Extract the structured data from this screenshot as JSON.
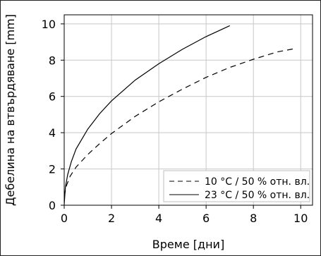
{
  "chart_data": {
    "type": "line",
    "xlabel": "Време [дни]",
    "ylabel": "Дебелина на втвърдяване [mm]",
    "xlim": [
      0,
      10.5
    ],
    "ylim": [
      0,
      10.5
    ],
    "xticks": [
      0,
      2,
      4,
      6,
      8,
      10
    ],
    "yticks": [
      0,
      2,
      4,
      6,
      8,
      10
    ],
    "grid": true,
    "legend_position": "bottom-right",
    "series": [
      {
        "name": "10 °C / 50 % отн. вл.",
        "style": "dashed",
        "color": "#000000",
        "x": [
          0,
          0.1,
          0.25,
          0.5,
          1,
          1.5,
          2,
          3,
          4,
          5,
          6,
          7,
          8,
          9,
          9.8
        ],
        "y": [
          0.5,
          1.1,
          1.6,
          2.1,
          2.8,
          3.4,
          3.95,
          4.9,
          5.7,
          6.4,
          7.05,
          7.6,
          8.05,
          8.45,
          8.65
        ]
      },
      {
        "name": "23 °C / 50 % отн. вл.",
        "style": "solid",
        "color": "#000000",
        "x": [
          0,
          0.05,
          0.15,
          0.3,
          0.5,
          1,
          1.5,
          2,
          3,
          4,
          5,
          6,
          7
        ],
        "y": [
          0.05,
          1.0,
          1.7,
          2.4,
          3.1,
          4.2,
          5.05,
          5.75,
          6.9,
          7.8,
          8.6,
          9.3,
          9.9
        ]
      }
    ]
  }
}
